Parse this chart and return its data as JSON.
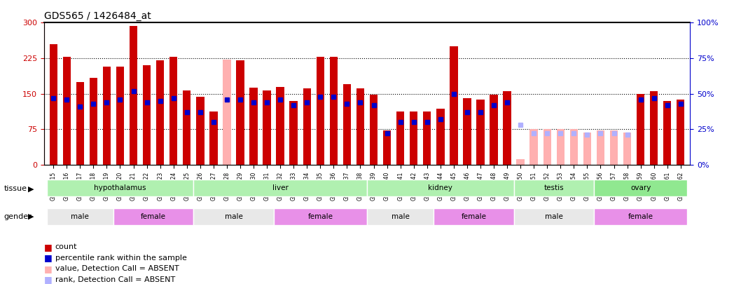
{
  "title": "GDS565 / 1426484_at",
  "samples": [
    "GSM19215",
    "GSM19216",
    "GSM19217",
    "GSM19218",
    "GSM19219",
    "GSM19220",
    "GSM19221",
    "GSM19222",
    "GSM19223",
    "GSM19224",
    "GSM19225",
    "GSM19226",
    "GSM19227",
    "GSM19228",
    "GSM19229",
    "GSM19230",
    "GSM19231",
    "GSM19232",
    "GSM19233",
    "GSM19234",
    "GSM19235",
    "GSM19236",
    "GSM19237",
    "GSM19238",
    "GSM19239",
    "GSM19240",
    "GSM19241",
    "GSM19242",
    "GSM19243",
    "GSM19244",
    "GSM19245",
    "GSM19246",
    "GSM19247",
    "GSM19248",
    "GSM19249",
    "GSM19250",
    "GSM19251",
    "GSM19252",
    "GSM19253",
    "GSM19254",
    "GSM19255",
    "GSM19256",
    "GSM19257",
    "GSM19258",
    "GSM19259",
    "GSM19260",
    "GSM19261",
    "GSM19262"
  ],
  "count_values": [
    255,
    228,
    175,
    183,
    207,
    207,
    293,
    210,
    220,
    228,
    157,
    143,
    113,
    222,
    220,
    163,
    157,
    165,
    135,
    162,
    228,
    228,
    170,
    162,
    148,
    73,
    113,
    113,
    113,
    118,
    250,
    140,
    137,
    148,
    155,
    null,
    null,
    null,
    null,
    null,
    null,
    null,
    null,
    null,
    150,
    155,
    135,
    138
  ],
  "rank_values": [
    47,
    46,
    41,
    43,
    44,
    46,
    52,
    44,
    45,
    47,
    37,
    37,
    30,
    46,
    46,
    44,
    44,
    46,
    42,
    44,
    48,
    48,
    43,
    44,
    42,
    22,
    30,
    30,
    30,
    32,
    50,
    37,
    37,
    42,
    44,
    null,
    null,
    null,
    null,
    null,
    null,
    null,
    null,
    null,
    46,
    47,
    42,
    43
  ],
  "absent_count": [
    null,
    null,
    null,
    null,
    null,
    null,
    null,
    null,
    null,
    null,
    null,
    null,
    null,
    222,
    null,
    null,
    null,
    null,
    null,
    null,
    null,
    null,
    null,
    null,
    null,
    null,
    null,
    null,
    null,
    null,
    null,
    null,
    null,
    null,
    null,
    12,
    75,
    75,
    75,
    75,
    68,
    73,
    73,
    68,
    null,
    null,
    null,
    null
  ],
  "absent_rank": [
    null,
    null,
    null,
    null,
    null,
    null,
    null,
    null,
    null,
    null,
    null,
    null,
    null,
    null,
    null,
    null,
    null,
    null,
    null,
    null,
    null,
    null,
    null,
    null,
    null,
    null,
    null,
    null,
    null,
    null,
    null,
    null,
    null,
    null,
    null,
    28,
    22,
    22,
    22,
    22,
    21,
    22,
    22,
    21,
    null,
    null,
    null,
    null
  ],
  "tissues": [
    {
      "name": "hypothalamus",
      "start": 0,
      "end": 11,
      "color": "#b0f0b0"
    },
    {
      "name": "liver",
      "start": 11,
      "end": 24,
      "color": "#b0f0b0"
    },
    {
      "name": "kidney",
      "start": 24,
      "end": 35,
      "color": "#b0f0b0"
    },
    {
      "name": "testis",
      "start": 35,
      "end": 41,
      "color": "#b0f0b0"
    },
    {
      "name": "ovary",
      "start": 41,
      "end": 48,
      "color": "#90e890"
    }
  ],
  "genders": [
    {
      "name": "male",
      "start": 0,
      "end": 5,
      "color": "#e8e8e8"
    },
    {
      "name": "female",
      "start": 5,
      "end": 11,
      "color": "#e890e8"
    },
    {
      "name": "male",
      "start": 11,
      "end": 17,
      "color": "#e8e8e8"
    },
    {
      "name": "female",
      "start": 17,
      "end": 24,
      "color": "#e890e8"
    },
    {
      "name": "male",
      "start": 24,
      "end": 29,
      "color": "#e8e8e8"
    },
    {
      "name": "female",
      "start": 29,
      "end": 35,
      "color": "#e890e8"
    },
    {
      "name": "male",
      "start": 35,
      "end": 41,
      "color": "#e8e8e8"
    },
    {
      "name": "female",
      "start": 41,
      "end": 48,
      "color": "#e890e8"
    }
  ],
  "ylim_left": [
    0,
    300
  ],
  "ylim_right": [
    0,
    100
  ],
  "yticks_left": [
    0,
    75,
    150,
    225,
    300
  ],
  "yticks_right": [
    0,
    25,
    50,
    75,
    100
  ],
  "bar_color": "#cc0000",
  "rank_color": "#0000cc",
  "absent_bar_color": "#ffb0b0",
  "absent_rank_color": "#b0b0ff",
  "bar_width": 0.6,
  "legend_items": [
    {
      "label": "count",
      "color": "#cc0000",
      "marker": "s"
    },
    {
      "label": "percentile rank within the sample",
      "color": "#0000cc",
      "marker": "s"
    },
    {
      "label": "value, Detection Call = ABSENT",
      "color": "#ffb0b0",
      "marker": "s"
    },
    {
      "label": "rank, Detection Call = ABSENT",
      "color": "#b0b0ff",
      "marker": "s"
    }
  ]
}
